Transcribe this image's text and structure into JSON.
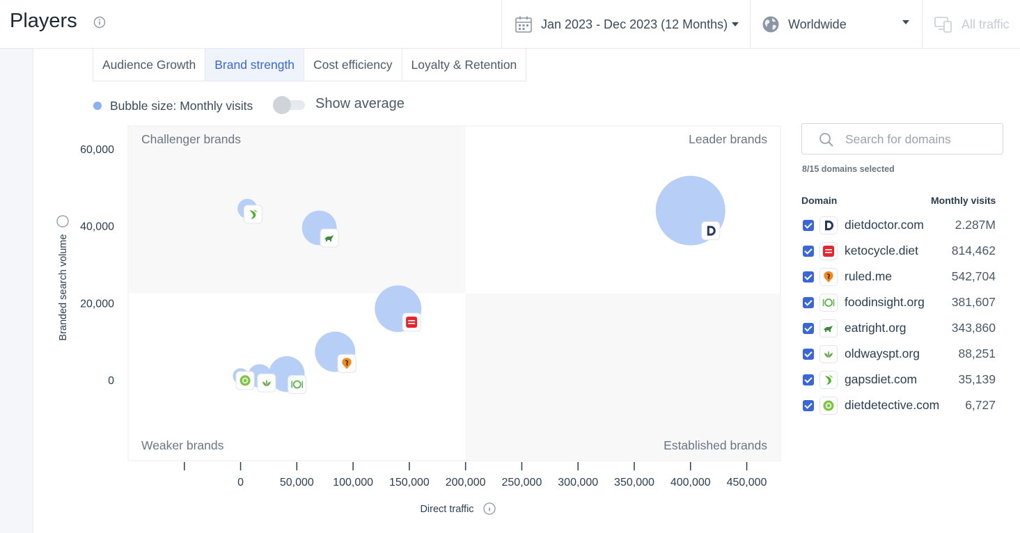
{
  "header": {
    "title": "Players",
    "date_range": "Jan 2023 - Dec 2023 (12 Months)",
    "region": "Worldwide",
    "traffic": "All traffic"
  },
  "tabs": [
    {
      "label": "Audience Growth",
      "active": false
    },
    {
      "label": "Brand strength",
      "active": true
    },
    {
      "label": "Cost efficiency",
      "active": false
    },
    {
      "label": "Loyalty & Retention",
      "active": false
    }
  ],
  "controls": {
    "bubble_legend": "Bubble size: Monthly visits",
    "toggle_label": "Show average",
    "toggle_on": false
  },
  "chart_data": {
    "type": "scatter",
    "xlabel": "Direct traffic",
    "ylabel": "Branded search volume",
    "xlim": [
      -100000,
      480000
    ],
    "ylim": [
      -21000,
      66000
    ],
    "x_ticks": [
      0,
      50000,
      100000,
      150000,
      200000,
      250000,
      300000,
      350000,
      400000,
      450000
    ],
    "x_tick_labels": [
      "0",
      "50,000",
      "100,000",
      "150,000",
      "200,000",
      "250,000",
      "300,000",
      "350,000",
      "400,000",
      "450,000"
    ],
    "y_ticks": [
      0,
      20000,
      40000,
      60000
    ],
    "y_tick_labels": [
      "0",
      "20,000",
      "40,000",
      "60,000"
    ],
    "quadrant_split": {
      "x": 200000,
      "y": 22500
    },
    "quadrant_labels": {
      "top_left": "Challenger brands",
      "top_right": "Leader brands",
      "bottom_left": "Weaker brands",
      "bottom_right": "Established brands"
    },
    "bubble_size": "Monthly visits",
    "points": [
      {
        "domain": "dietdoctor.com",
        "x": 400000,
        "y": 44000,
        "size": 2287000,
        "icon": "dietdoctor-icon"
      },
      {
        "domain": "ketocycle.diet",
        "x": 140000,
        "y": 18500,
        "size": 814462,
        "icon": "ketocycle-icon"
      },
      {
        "domain": "ruled.me",
        "x": 84000,
        "y": 7300,
        "size": 542704,
        "icon": "ruledme-icon"
      },
      {
        "domain": "foodinsight.org",
        "x": 41000,
        "y": 1500,
        "size": 381607,
        "icon": "foodinsight-icon"
      },
      {
        "domain": "eatright.org",
        "x": 70000,
        "y": 39500,
        "size": 343860,
        "icon": "eatright-icon"
      },
      {
        "domain": "oldwayspt.org",
        "x": 17000,
        "y": 1000,
        "size": 88251,
        "icon": "oldways-icon"
      },
      {
        "domain": "gapsdiet.com",
        "x": 6000,
        "y": 44500,
        "size": 35139,
        "icon": "gapsdiet-icon"
      },
      {
        "domain": "dietdetective.com",
        "x": 0,
        "y": 1000,
        "size": 6727,
        "icon": "dietdetective-icon"
      }
    ]
  },
  "panel": {
    "search_placeholder": "Search for domains",
    "selected_count": "8/15 domains selected",
    "col_domain": "Domain",
    "col_visits": "Monthly visits",
    "domains": [
      {
        "name": "dietdoctor.com",
        "visits": "2.287M",
        "checked": true,
        "icon": "dietdoctor-icon"
      },
      {
        "name": "ketocycle.diet",
        "visits": "814,462",
        "checked": true,
        "icon": "ketocycle-icon"
      },
      {
        "name": "ruled.me",
        "visits": "542,704",
        "checked": true,
        "icon": "ruledme-icon"
      },
      {
        "name": "foodinsight.org",
        "visits": "381,607",
        "checked": true,
        "icon": "foodinsight-icon"
      },
      {
        "name": "eatright.org",
        "visits": "343,860",
        "checked": true,
        "icon": "eatright-icon"
      },
      {
        "name": "oldwayspt.org",
        "visits": "88,251",
        "checked": true,
        "icon": "oldways-icon"
      },
      {
        "name": "gapsdiet.com",
        "visits": "35,139",
        "checked": true,
        "icon": "gapsdiet-icon"
      },
      {
        "name": "dietdetective.com",
        "visits": "6,727",
        "checked": true,
        "icon": "dietdetective-icon"
      }
    ]
  },
  "colors": {
    "bubble": "#b3cbf7",
    "accent": "#3a66d6",
    "tab_active_bg": "#eef3fc",
    "quadrant_shade": "#f8f8f9"
  }
}
